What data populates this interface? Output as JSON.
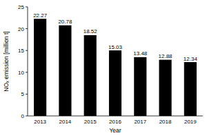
{
  "chart_data": {
    "type": "bar",
    "categories": [
      "2013",
      "2014",
      "2015",
      "2016",
      "2017",
      "2018",
      "2019"
    ],
    "values": [
      22.27,
      20.78,
      18.52,
      15.03,
      13.48,
      12.88,
      12.34
    ],
    "color": "#000000",
    "x_label": "Year",
    "y_label": "NOₓ emission [million t]",
    "ylim": [
      0,
      25
    ],
    "yticks": [
      0,
      5,
      10,
      15,
      20,
      25
    ],
    "grid": false,
    "data_labels": true
  }
}
